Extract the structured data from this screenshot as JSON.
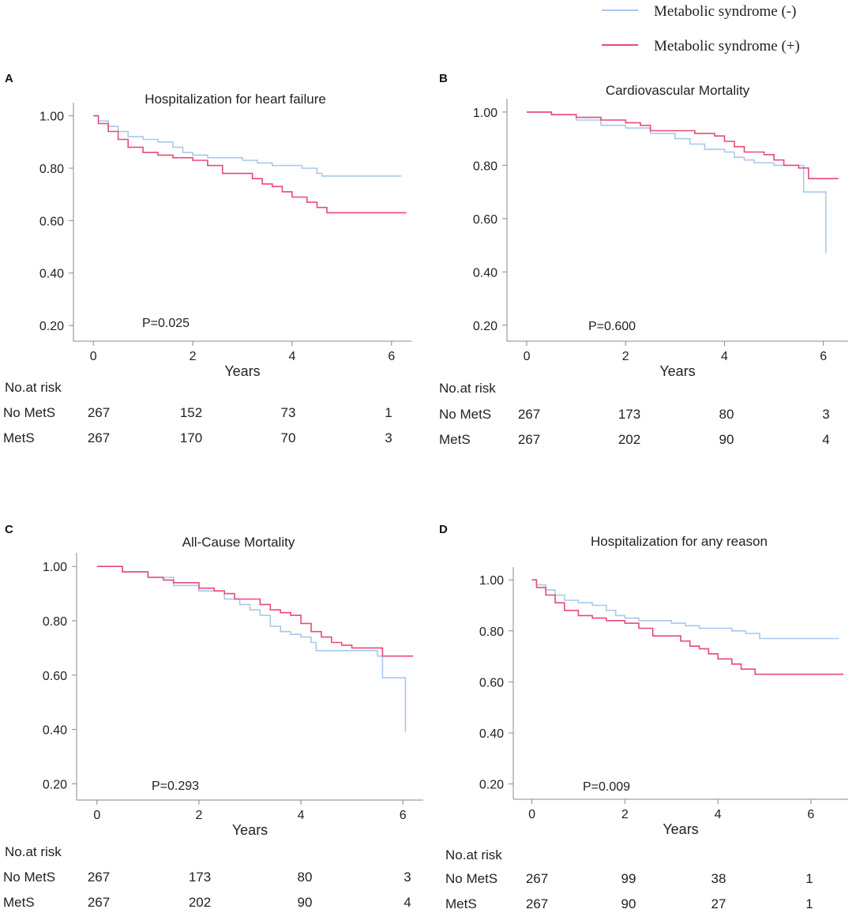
{
  "legend": {
    "entries": [
      {
        "label": "Metabolic syndrome (-)",
        "color": "#a9c8ec"
      },
      {
        "label": "Metabolic syndrome (+)",
        "color": "#e8497a"
      }
    ]
  },
  "chart_data": [
    {
      "letter": "A",
      "type": "line",
      "title": "Hospitalization for heart failure",
      "xlabel": "Years",
      "ylabel": "",
      "xlim": [
        -0.4,
        6.4
      ],
      "ylim": [
        0.14,
        1.05
      ],
      "xticks": [
        0,
        2,
        4,
        6
      ],
      "xtick_labels": [
        "0",
        "2",
        "4",
        "6"
      ],
      "yticks": [
        0.2,
        0.4,
        0.6,
        0.8,
        1.0
      ],
      "ytick_labels": [
        "0.20",
        "0.40",
        "0.60",
        "0.80",
        "1.00"
      ],
      "p_value": "P=0.025",
      "series": [
        {
          "name": "Metabolic syndrome (-)",
          "color": "#a9c8ec",
          "points": [
            [
              0,
              1.0
            ],
            [
              0.1,
              0.98
            ],
            [
              0.3,
              0.96
            ],
            [
              0.5,
              0.94
            ],
            [
              0.7,
              0.92
            ],
            [
              1.0,
              0.91
            ],
            [
              1.3,
              0.9
            ],
            [
              1.6,
              0.88
            ],
            [
              1.8,
              0.86
            ],
            [
              2.0,
              0.85
            ],
            [
              2.3,
              0.84
            ],
            [
              2.6,
              0.84
            ],
            [
              3.0,
              0.83
            ],
            [
              3.3,
              0.82
            ],
            [
              3.6,
              0.81
            ],
            [
              4.0,
              0.81
            ],
            [
              4.2,
              0.8
            ],
            [
              4.5,
              0.78
            ],
            [
              4.6,
              0.77
            ],
            [
              5.0,
              0.77
            ],
            [
              6.2,
              0.77
            ]
          ]
        },
        {
          "name": "Metabolic syndrome (+)",
          "color": "#e8497a",
          "points": [
            [
              0,
              1.0
            ],
            [
              0.1,
              0.97
            ],
            [
              0.3,
              0.94
            ],
            [
              0.5,
              0.91
            ],
            [
              0.7,
              0.88
            ],
            [
              1.0,
              0.86
            ],
            [
              1.3,
              0.85
            ],
            [
              1.6,
              0.84
            ],
            [
              2.0,
              0.83
            ],
            [
              2.3,
              0.81
            ],
            [
              2.6,
              0.78
            ],
            [
              3.0,
              0.78
            ],
            [
              3.2,
              0.76
            ],
            [
              3.4,
              0.74
            ],
            [
              3.6,
              0.73
            ],
            [
              3.8,
              0.71
            ],
            [
              4.0,
              0.69
            ],
            [
              4.3,
              0.67
            ],
            [
              4.5,
              0.65
            ],
            [
              4.7,
              0.63
            ],
            [
              5.0,
              0.63
            ],
            [
              6.3,
              0.63
            ]
          ]
        }
      ],
      "risk_table": {
        "header": "No.at risk",
        "rows": [
          {
            "label": "No MetS",
            "values": [
              "267",
              "152",
              "73",
              "1"
            ]
          },
          {
            "label": "MetS",
            "values": [
              "267",
              "170",
              "70",
              "3"
            ]
          }
        ]
      }
    },
    {
      "letter": "B",
      "type": "line",
      "title": "Cardiovascular Mortality",
      "xlabel": "Years",
      "ylabel": "",
      "xlim": [
        -0.4,
        6.5
      ],
      "ylim": [
        0.14,
        1.05
      ],
      "xticks": [
        0,
        2,
        4,
        6
      ],
      "xtick_labels": [
        "0",
        "2",
        "4",
        "6"
      ],
      "yticks": [
        0.2,
        0.4,
        0.6,
        0.8,
        1.0
      ],
      "ytick_labels": [
        "0.20",
        "0.40",
        "0.60",
        "0.80",
        "1.00"
      ],
      "p_value": "P=0.600",
      "series": [
        {
          "name": "Metabolic syndrome (-)",
          "color": "#a9c8ec",
          "points": [
            [
              0,
              1.0
            ],
            [
              0.5,
              0.99
            ],
            [
              1.0,
              0.97
            ],
            [
              1.5,
              0.95
            ],
            [
              2.0,
              0.94
            ],
            [
              2.5,
              0.92
            ],
            [
              3.0,
              0.9
            ],
            [
              3.3,
              0.88
            ],
            [
              3.6,
              0.86
            ],
            [
              4.0,
              0.85
            ],
            [
              4.2,
              0.83
            ],
            [
              4.4,
              0.82
            ],
            [
              4.6,
              0.81
            ],
            [
              5.0,
              0.8
            ],
            [
              5.5,
              0.8
            ],
            [
              5.6,
              0.7
            ],
            [
              6.0,
              0.7
            ],
            [
              6.05,
              0.47
            ]
          ]
        },
        {
          "name": "Metabolic syndrome (+)",
          "color": "#e8497a",
          "points": [
            [
              0,
              1.0
            ],
            [
              0.5,
              0.99
            ],
            [
              1.0,
              0.98
            ],
            [
              1.5,
              0.97
            ],
            [
              2.0,
              0.96
            ],
            [
              2.3,
              0.95
            ],
            [
              2.5,
              0.93
            ],
            [
              3.0,
              0.93
            ],
            [
              3.4,
              0.92
            ],
            [
              3.8,
              0.91
            ],
            [
              4.0,
              0.89
            ],
            [
              4.2,
              0.87
            ],
            [
              4.4,
              0.85
            ],
            [
              4.8,
              0.84
            ],
            [
              5.0,
              0.82
            ],
            [
              5.2,
              0.8
            ],
            [
              5.5,
              0.79
            ],
            [
              5.7,
              0.75
            ],
            [
              6.3,
              0.75
            ]
          ]
        }
      ],
      "risk_table": {
        "header": "No.at risk",
        "rows": [
          {
            "label": "No MetS",
            "values": [
              "267",
              "173",
              "80",
              "3"
            ]
          },
          {
            "label": "MetS",
            "values": [
              "267",
              "202",
              "90",
              "4"
            ]
          }
        ]
      }
    },
    {
      "letter": "C",
      "type": "line",
      "title": "All-Cause Mortality",
      "xlabel": "Years",
      "ylabel": "",
      "xlim": [
        -0.4,
        6.4
      ],
      "ylim": [
        0.14,
        1.05
      ],
      "xticks": [
        0,
        2,
        4,
        6
      ],
      "xtick_labels": [
        "0",
        "2",
        "4",
        "6"
      ],
      "yticks": [
        0.2,
        0.4,
        0.6,
        0.8,
        1.0
      ],
      "ytick_labels": [
        "0.20",
        "0.40",
        "0.60",
        "0.80",
        "1.00"
      ],
      "p_value": "P=0.293",
      "series": [
        {
          "name": "Metabolic syndrome (-)",
          "color": "#a9c8ec",
          "points": [
            [
              0,
              1.0
            ],
            [
              0.5,
              0.98
            ],
            [
              1.0,
              0.96
            ],
            [
              1.5,
              0.93
            ],
            [
              2.0,
              0.91
            ],
            [
              2.5,
              0.88
            ],
            [
              2.8,
              0.86
            ],
            [
              3.0,
              0.84
            ],
            [
              3.2,
              0.82
            ],
            [
              3.4,
              0.78
            ],
            [
              3.6,
              0.76
            ],
            [
              3.8,
              0.75
            ],
            [
              4.0,
              0.74
            ],
            [
              4.2,
              0.72
            ],
            [
              4.3,
              0.69
            ],
            [
              5.0,
              0.69
            ],
            [
              5.5,
              0.67
            ],
            [
              5.6,
              0.59
            ],
            [
              6.0,
              0.59
            ],
            [
              6.05,
              0.39
            ]
          ]
        },
        {
          "name": "Metabolic syndrome (+)",
          "color": "#e8497a",
          "points": [
            [
              0,
              1.0
            ],
            [
              0.5,
              0.98
            ],
            [
              1.0,
              0.96
            ],
            [
              1.3,
              0.95
            ],
            [
              1.5,
              0.94
            ],
            [
              2.0,
              0.92
            ],
            [
              2.3,
              0.91
            ],
            [
              2.5,
              0.9
            ],
            [
              2.7,
              0.88
            ],
            [
              3.0,
              0.88
            ],
            [
              3.2,
              0.86
            ],
            [
              3.4,
              0.84
            ],
            [
              3.6,
              0.83
            ],
            [
              3.8,
              0.82
            ],
            [
              4.0,
              0.79
            ],
            [
              4.2,
              0.76
            ],
            [
              4.4,
              0.74
            ],
            [
              4.6,
              0.72
            ],
            [
              4.8,
              0.71
            ],
            [
              5.0,
              0.7
            ],
            [
              5.5,
              0.7
            ],
            [
              5.6,
              0.67
            ],
            [
              6.2,
              0.67
            ]
          ]
        }
      ],
      "risk_table": {
        "header": "No.at risk",
        "rows": [
          {
            "label": "No MetS",
            "values": [
              "267",
              "173",
              "80",
              "3"
            ]
          },
          {
            "label": "MetS",
            "values": [
              "267",
              "202",
              "90",
              "4"
            ]
          }
        ]
      }
    },
    {
      "letter": "D",
      "type": "line",
      "title": "Hospitalization for any reason",
      "xlabel": "Years",
      "ylabel": "",
      "xlim": [
        -0.4,
        6.8
      ],
      "ylim": [
        0.14,
        1.05
      ],
      "xticks": [
        0,
        2,
        4,
        6
      ],
      "xtick_labels": [
        "0",
        "2",
        "4",
        "6"
      ],
      "yticks": [
        0.2,
        0.4,
        0.6,
        0.8,
        1.0
      ],
      "ytick_labels": [
        "0.20",
        "0.40",
        "0.60",
        "0.80",
        "1.00"
      ],
      "p_value": "P=0.009",
      "series": [
        {
          "name": "Metabolic syndrome (-)",
          "color": "#a9c8ec",
          "points": [
            [
              0,
              1.0
            ],
            [
              0.1,
              0.98
            ],
            [
              0.3,
              0.96
            ],
            [
              0.5,
              0.94
            ],
            [
              0.7,
              0.92
            ],
            [
              1.0,
              0.91
            ],
            [
              1.3,
              0.9
            ],
            [
              1.6,
              0.88
            ],
            [
              1.8,
              0.86
            ],
            [
              2.0,
              0.85
            ],
            [
              2.3,
              0.84
            ],
            [
              2.6,
              0.84
            ],
            [
              3.0,
              0.83
            ],
            [
              3.3,
              0.82
            ],
            [
              3.6,
              0.81
            ],
            [
              4.0,
              0.81
            ],
            [
              4.3,
              0.8
            ],
            [
              4.6,
              0.79
            ],
            [
              4.9,
              0.77
            ],
            [
              5.5,
              0.77
            ],
            [
              6.6,
              0.77
            ]
          ]
        },
        {
          "name": "Metabolic syndrome (+)",
          "color": "#e8497a",
          "points": [
            [
              0,
              1.0
            ],
            [
              0.1,
              0.97
            ],
            [
              0.3,
              0.94
            ],
            [
              0.5,
              0.91
            ],
            [
              0.7,
              0.88
            ],
            [
              1.0,
              0.86
            ],
            [
              1.3,
              0.85
            ],
            [
              1.6,
              0.84
            ],
            [
              2.0,
              0.83
            ],
            [
              2.3,
              0.81
            ],
            [
              2.6,
              0.78
            ],
            [
              3.0,
              0.78
            ],
            [
              3.2,
              0.76
            ],
            [
              3.4,
              0.74
            ],
            [
              3.6,
              0.73
            ],
            [
              3.8,
              0.71
            ],
            [
              4.0,
              0.69
            ],
            [
              4.3,
              0.67
            ],
            [
              4.5,
              0.65
            ],
            [
              4.8,
              0.63
            ],
            [
              5.0,
              0.63
            ],
            [
              6.7,
              0.63
            ]
          ]
        }
      ],
      "risk_table": {
        "header": "No.at risk",
        "rows": [
          {
            "label": "No MetS",
            "values": [
              "267",
              "99",
              "38",
              "1"
            ]
          },
          {
            "label": "MetS",
            "values": [
              "267",
              "90",
              "27",
              "1"
            ]
          }
        ]
      }
    }
  ]
}
